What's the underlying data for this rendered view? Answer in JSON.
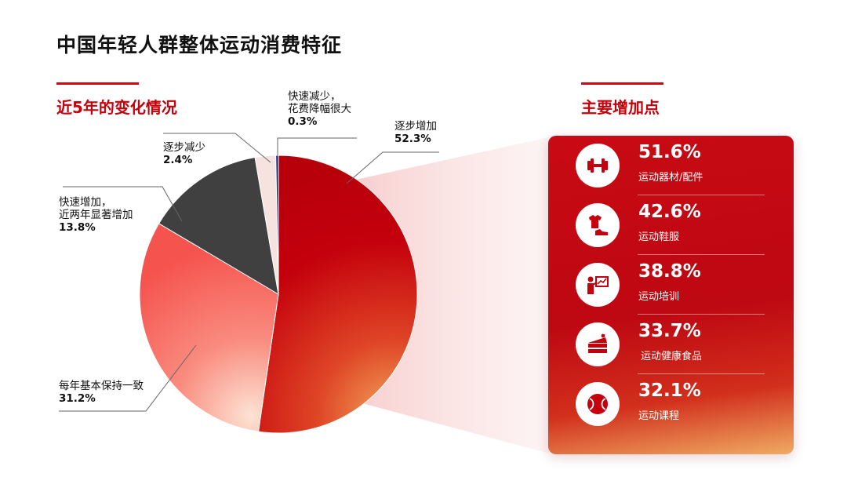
{
  "page": {
    "title": "中国年轻人群整体运动消费特征",
    "left_section_title": "近5年的变化情况",
    "right_section_title": "主要增加点"
  },
  "chart_data": [
    {
      "type": "pie",
      "title": "近5年的变化情况",
      "slices": [
        {
          "label": "逐步增加",
          "value": 52.3,
          "value_label": "52.3%",
          "color": "#c4000c"
        },
        {
          "label": "每年基本保持一致",
          "value": 31.2,
          "value_label": "31.2%",
          "color": "#f5665e"
        },
        {
          "label": "快速增加，近两年显著增加",
          "label_lines": [
            "快速增加，",
            "近两年显著增加"
          ],
          "value": 13.8,
          "value_label": "13.8%",
          "color": "#404040"
        },
        {
          "label": "逐步减少",
          "value": 2.4,
          "value_label": "2.4%",
          "color": "#f6e3e0"
        },
        {
          "label": "快速减少，花费降幅很大",
          "label_lines": [
            "快速减少，",
            "花费降幅很大"
          ],
          "value": 0.3,
          "value_label": "0.3%",
          "color": "#1a2b7a"
        }
      ]
    },
    {
      "type": "bar",
      "title": "主要增加点",
      "categories": [
        "运动器材/配件",
        "运动鞋服",
        "运动培训",
        "运动健康食品",
        "运动课程"
      ],
      "values": [
        51.6,
        42.6,
        38.8,
        33.7,
        32.1
      ],
      "value_labels": [
        "51.6%",
        "42.6%",
        "38.8%",
        "33.7%",
        "32.1%"
      ],
      "icons": [
        "dumbbell-icon",
        "clothing-shoe-icon",
        "training-board-icon",
        "cake-icon",
        "ball-icon"
      ]
    }
  ]
}
